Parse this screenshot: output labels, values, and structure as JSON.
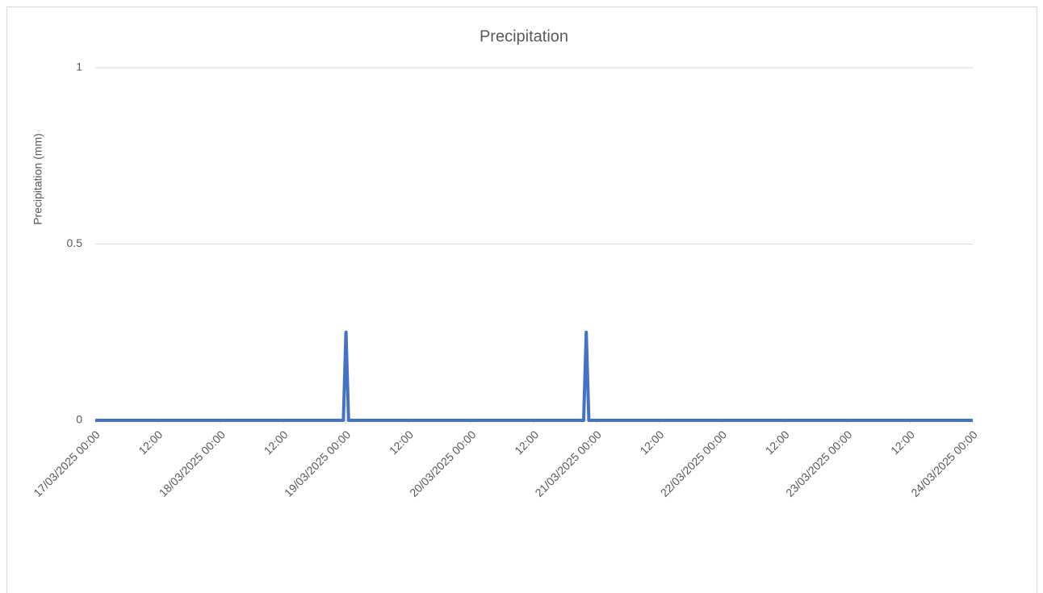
{
  "chart_data": {
    "type": "line",
    "title": "Precipitation",
    "y_label": "Precipitation (mm)",
    "x": [
      "17/03/2025 00:00",
      "18/03/2025 23:30",
      "19/03/2025 00:00",
      "19/03/2025 00:30",
      "20/03/2025 21:30",
      "20/03/2025 22:00",
      "20/03/2025 22:30",
      "24/03/2025 00:00"
    ],
    "values": [
      0,
      0,
      0.25,
      0,
      0,
      0.25,
      0,
      0
    ],
    "color": "#4472c4",
    "xlim": [
      "17/03/2025 00:00",
      "24/03/2025 00:00"
    ],
    "xticks": [
      "17/03/2025 00:00",
      {
        "value": "17/03/2025 12:00",
        "label": "12:00"
      },
      "18/03/2025 00:00",
      {
        "value": "18/03/2025 12:00",
        "label": "12:00"
      },
      "19/03/2025 00:00",
      {
        "value": "19/03/2025 12:00",
        "label": "12:00"
      },
      "20/03/2025 00:00",
      {
        "value": "20/03/2025 12:00",
        "label": "12:00"
      },
      "21/03/2025 00:00",
      {
        "value": "21/03/2025 12:00",
        "label": "12:00"
      },
      "22/03/2025 00:00",
      {
        "value": "22/03/2025 12:00",
        "label": "12:00"
      },
      "23/03/2025 00:00",
      {
        "value": "23/03/2025 12:00",
        "label": "12:00"
      },
      "24/03/2025 00:00"
    ],
    "ylim": [
      0,
      1
    ],
    "yticks": [
      0,
      0.5,
      1
    ],
    "grid": true
  }
}
